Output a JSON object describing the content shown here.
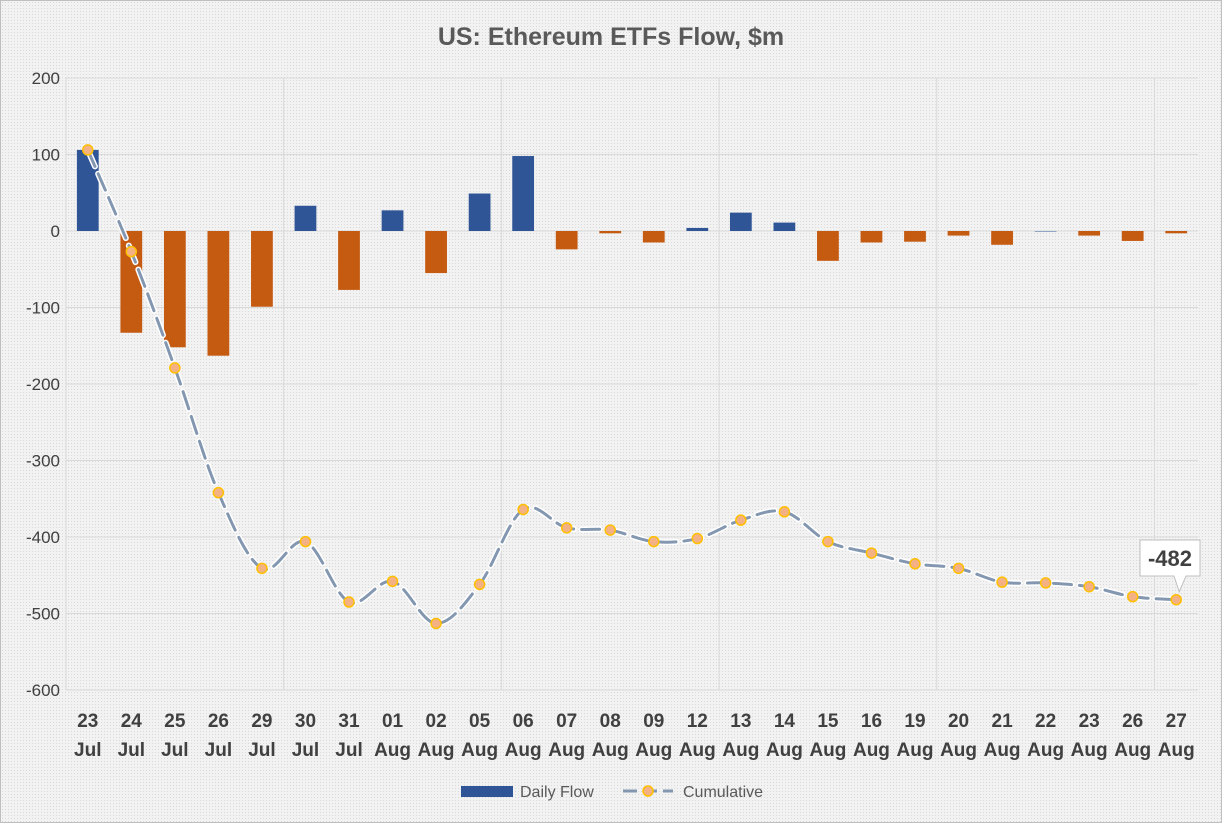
{
  "chart_data": {
    "type": "bar",
    "title": "US: Ethereum ETFs Flow, $m",
    "xlabel": "",
    "ylabel": "",
    "ylim": [
      -600,
      200
    ],
    "yticks": [
      200,
      100,
      0,
      -100,
      -200,
      -300,
      -400,
      -500,
      -600
    ],
    "categories": [
      [
        "23",
        "Jul"
      ],
      [
        "24",
        "Jul"
      ],
      [
        "25",
        "Jul"
      ],
      [
        "26",
        "Jul"
      ],
      [
        "29",
        "Jul"
      ],
      [
        "30",
        "Jul"
      ],
      [
        "31",
        "Jul"
      ],
      [
        "01",
        "Aug"
      ],
      [
        "02",
        "Aug"
      ],
      [
        "05",
        "Aug"
      ],
      [
        "06",
        "Aug"
      ],
      [
        "07",
        "Aug"
      ],
      [
        "08",
        "Aug"
      ],
      [
        "09",
        "Aug"
      ],
      [
        "12",
        "Aug"
      ],
      [
        "13",
        "Aug"
      ],
      [
        "14",
        "Aug"
      ],
      [
        "15",
        "Aug"
      ],
      [
        "16",
        "Aug"
      ],
      [
        "19",
        "Aug"
      ],
      [
        "20",
        "Aug"
      ],
      [
        "21",
        "Aug"
      ],
      [
        "22",
        "Aug"
      ],
      [
        "23",
        "Aug"
      ],
      [
        "26",
        "Aug"
      ],
      [
        "27",
        "Aug"
      ]
    ],
    "series": [
      {
        "name": "Daily Flow",
        "type": "bar",
        "positive_color": "#2f5597",
        "negative_color": "#c55a11",
        "values": [
          106,
          -133,
          -152,
          -163,
          -99,
          33,
          -77,
          27,
          -55,
          49,
          98,
          -24,
          -3,
          -15,
          4,
          24,
          11,
          -39,
          -15,
          -14,
          -6,
          -18,
          0,
          -6,
          -13,
          -3
        ]
      },
      {
        "name": "Cumulative",
        "type": "line",
        "line_color": "#8497b0",
        "marker_fill": "#f4b183",
        "marker_edge": "#ffc000",
        "values": [
          106,
          -27,
          -179,
          -342,
          -441,
          -406,
          -485,
          -458,
          -513,
          -462,
          -364,
          -388,
          -391,
          -406,
          -402,
          -378,
          -367,
          -406,
          -421,
          -435,
          -441,
          -459,
          -460,
          -465,
          -478,
          -482
        ]
      }
    ],
    "callout": {
      "label": "-482",
      "series": "Cumulative",
      "index": 25
    },
    "gridlines": true,
    "vertical_separators_after": [
      "29 Jul",
      "05 Aug",
      "12 Aug",
      "19 Aug",
      "26 Aug"
    ],
    "legend": {
      "position": "bottom"
    }
  }
}
